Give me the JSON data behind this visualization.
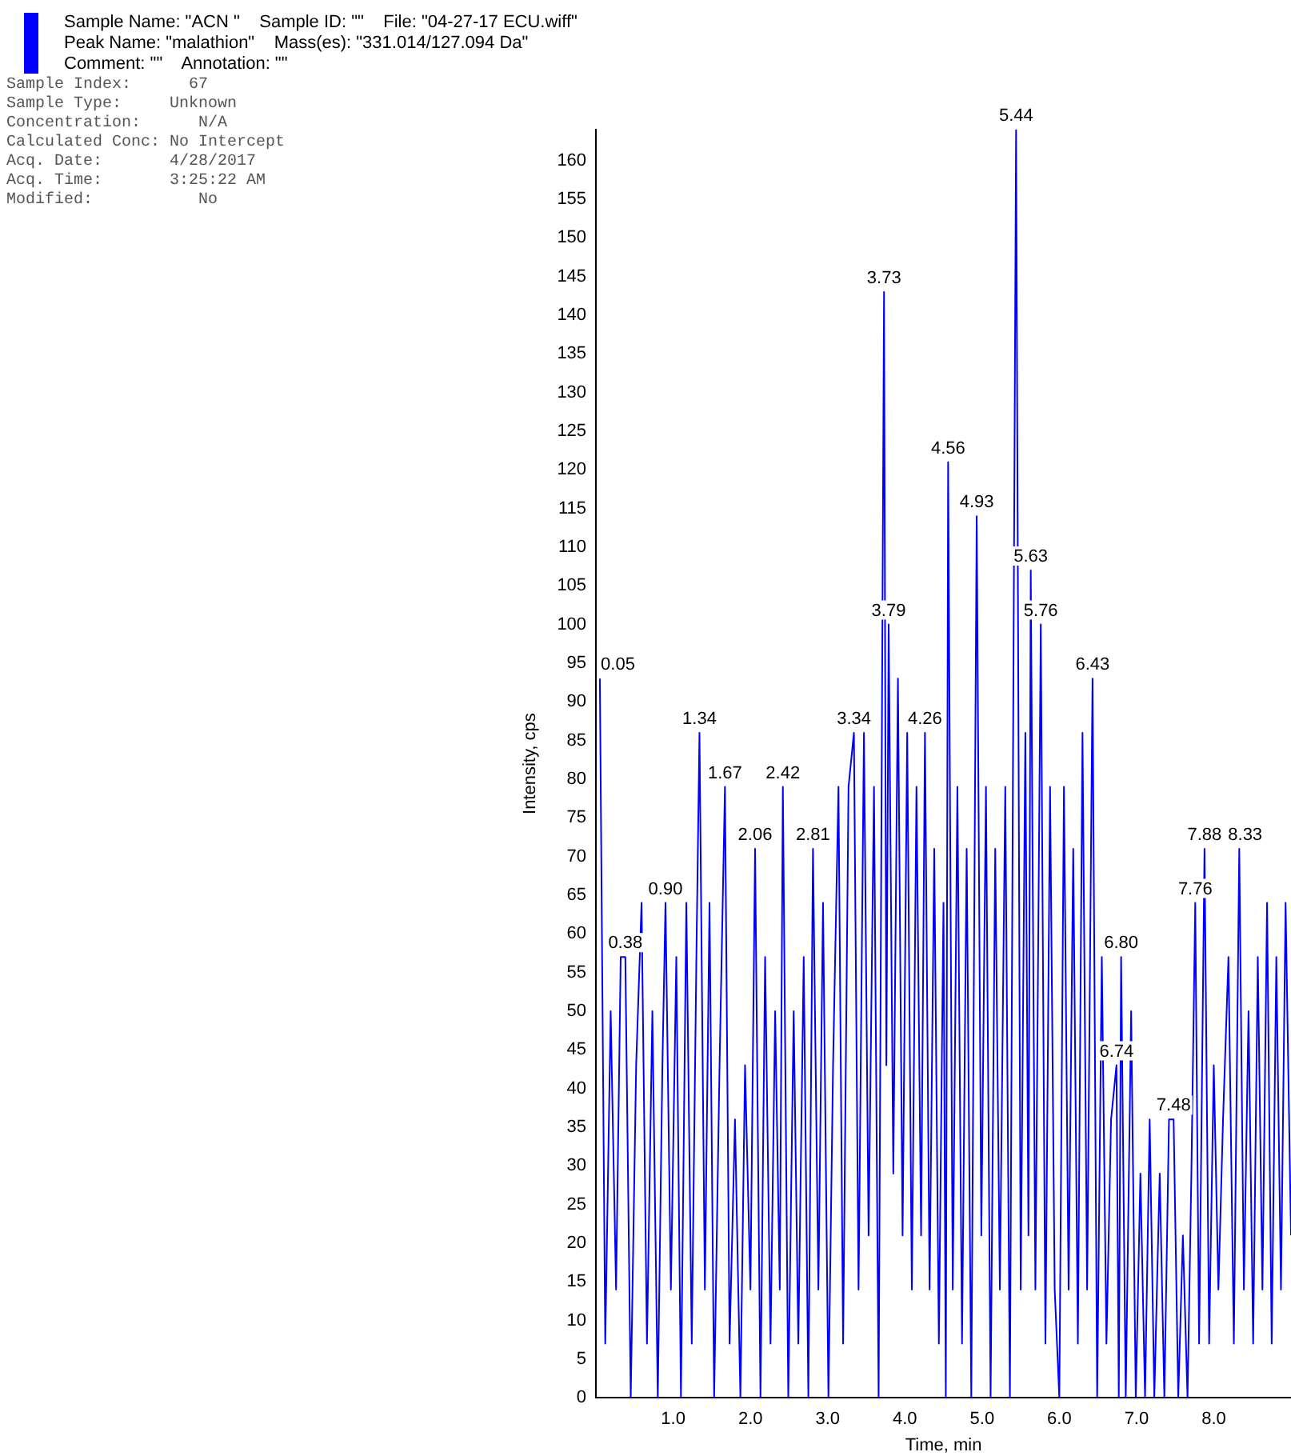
{
  "chart_data": {
    "type": "line",
    "title": "Sample Name: \"ACN \"    Sample ID: \"\"    File: \"04-27-17 ECU.wiff\"",
    "subtitle": "Peak Name: \"malathion\"    Mass(es): \"331.014/127.094 Da\"",
    "xlabel": "Time, min",
    "ylabel": "Intensity, cps",
    "grid": false,
    "legend": false,
    "marker": "none",
    "line_style": "solid",
    "xlim": [
      0,
      9
    ],
    "xticks": [
      {
        "value": 1,
        "label": "1.0"
      },
      {
        "value": 2,
        "label": "2.0"
      },
      {
        "value": 3,
        "label": "3.0"
      },
      {
        "value": 4,
        "label": "4.0"
      },
      {
        "value": 5,
        "label": "5.0"
      },
      {
        "value": 6,
        "label": "6.0"
      },
      {
        "value": 7,
        "label": "7.0"
      },
      {
        "value": 8,
        "label": "8.0"
      }
    ],
    "ylim": [
      0,
      164
    ],
    "yticks": [
      0,
      5,
      10,
      15,
      20,
      25,
      30,
      35,
      40,
      45,
      50,
      55,
      60,
      65,
      70,
      75,
      80,
      85,
      90,
      95,
      100,
      105,
      110,
      115,
      120,
      125,
      130,
      135,
      140,
      145,
      150,
      155,
      160
    ],
    "annotations": [
      "Comment: \"\"    Annotation: \"\"",
      "Sample Index:      67",
      "Sample Type:     Unknown",
      "Concentration:      N/A",
      "Calculated Conc: No Intercept",
      "Acq. Date:       4/28/2017",
      "Acq. Time:       3:25:22 AM",
      "Modified:           No",
      {
        "text": "0.05",
        "x": 0.05,
        "y": 93
      },
      {
        "text": "0.38",
        "x": 0.38,
        "y": 57
      },
      {
        "text": "0.90",
        "x": 0.9,
        "y": 64
      },
      {
        "text": "1.34",
        "x": 1.34,
        "y": 86
      },
      {
        "text": "1.67",
        "x": 1.67,
        "y": 79
      },
      {
        "text": "2.06",
        "x": 2.06,
        "y": 71
      },
      {
        "text": "2.42",
        "x": 2.42,
        "y": 79
      },
      {
        "text": "2.81",
        "x": 2.81,
        "y": 71
      },
      {
        "text": "3.34",
        "x": 3.34,
        "y": 86
      },
      {
        "text": "3.73",
        "x": 3.73,
        "y": 143
      },
      {
        "text": "3.79",
        "x": 3.79,
        "y": 100
      },
      {
        "text": "4.26",
        "x": 4.26,
        "y": 86
      },
      {
        "text": "4.56",
        "x": 4.56,
        "y": 121
      },
      {
        "text": "4.93",
        "x": 4.93,
        "y": 114
      },
      {
        "text": "5.44",
        "x": 5.44,
        "y": 164
      },
      {
        "text": "5.63",
        "x": 5.63,
        "y": 107
      },
      {
        "text": "5.76",
        "x": 5.76,
        "y": 100
      },
      {
        "text": "6.43",
        "x": 6.43,
        "y": 93
      },
      {
        "text": "6.74",
        "x": 6.74,
        "y": 43
      },
      {
        "text": "6.80",
        "x": 6.8,
        "y": 57
      },
      {
        "text": "7.48",
        "x": 7.48,
        "y": 36
      },
      {
        "text": "7.76",
        "x": 7.76,
        "y": 64
      },
      {
        "text": "7.88",
        "x": 7.88,
        "y": 71
      },
      {
        "text": "8.33",
        "x": 8.33,
        "y": 71
      }
    ],
    "series": [
      {
        "color": "#0000ff",
        "x": [
          0.05,
          0.12,
          0.19,
          0.26,
          0.32,
          0.38,
          0.45,
          0.52,
          0.59,
          0.66,
          0.73,
          0.8,
          0.86,
          0.9,
          0.97,
          1.04,
          1.1,
          1.17,
          1.24,
          1.3,
          1.34,
          1.41,
          1.47,
          1.53,
          1.6,
          1.67,
          1.73,
          1.8,
          1.87,
          1.93,
          2,
          2.06,
          2.13,
          2.19,
          2.26,
          2.32,
          2.38,
          2.42,
          2.49,
          2.56,
          2.62,
          2.69,
          2.75,
          2.81,
          2.88,
          2.94,
          3.01,
          3.07,
          3.14,
          3.2,
          3.27,
          3.34,
          3.4,
          3.47,
          3.53,
          3.6,
          3.66,
          3.73,
          3.76,
          3.79,
          3.85,
          3.91,
          3.97,
          4.03,
          4.09,
          4.15,
          4.21,
          4.26,
          4.32,
          4.38,
          4.44,
          4.5,
          4.53,
          4.56,
          4.62,
          4.68,
          4.74,
          4.8,
          4.86,
          4.93,
          4.99,
          5.05,
          5.11,
          5.17,
          5.23,
          5.3,
          5.36,
          5.44,
          5.5,
          5.56,
          5.6,
          5.63,
          5.69,
          5.76,
          5.82,
          5.88,
          5.94,
          6,
          6.06,
          6.12,
          6.18,
          6.24,
          6.3,
          6.36,
          6.43,
          6.49,
          6.55,
          6.61,
          6.67,
          6.74,
          6.77,
          6.8,
          6.86,
          6.93,
          6.99,
          7.05,
          7.11,
          7.17,
          7.23,
          7.3,
          7.36,
          7.42,
          7.48,
          7.54,
          7.6,
          7.66,
          7.71,
          7.76,
          7.81,
          7.88,
          7.94,
          8,
          8.06,
          8.12,
          8.19,
          8.26,
          8.33,
          8.39,
          8.45,
          8.51,
          8.57,
          8.63,
          8.69,
          8.75,
          8.81,
          8.87,
          8.93,
          9
        ],
        "values": [
          93,
          7,
          50,
          14,
          57,
          57,
          0,
          43,
          64,
          7,
          50,
          0,
          43,
          64,
          14,
          57,
          0,
          64,
          7,
          57,
          86,
          14,
          64,
          0,
          43,
          79,
          7,
          36,
          0,
          43,
          14,
          71,
          0,
          57,
          7,
          50,
          14,
          79,
          0,
          50,
          7,
          57,
          0,
          71,
          14,
          64,
          0,
          43,
          79,
          7,
          79,
          86,
          14,
          86,
          21,
          79,
          0,
          143,
          43,
          100,
          29,
          93,
          21,
          86,
          14,
          79,
          21,
          86,
          14,
          71,
          7,
          64,
          0,
          121,
          14,
          79,
          7,
          71,
          0,
          114,
          21,
          79,
          0,
          71,
          14,
          79,
          0,
          164,
          14,
          86,
          21,
          107,
          14,
          100,
          7,
          79,
          14,
          0,
          79,
          14,
          71,
          7,
          86,
          14,
          93,
          0,
          57,
          7,
          36,
          43,
          0,
          57,
          0,
          50,
          0,
          29,
          0,
          36,
          0,
          29,
          0,
          36,
          36,
          0,
          21,
          0,
          29,
          64,
          7,
          71,
          7,
          43,
          14,
          36,
          57,
          7,
          71,
          14,
          50,
          7,
          57,
          14,
          64,
          7,
          57,
          14,
          64,
          21
        ]
      }
    ]
  }
}
